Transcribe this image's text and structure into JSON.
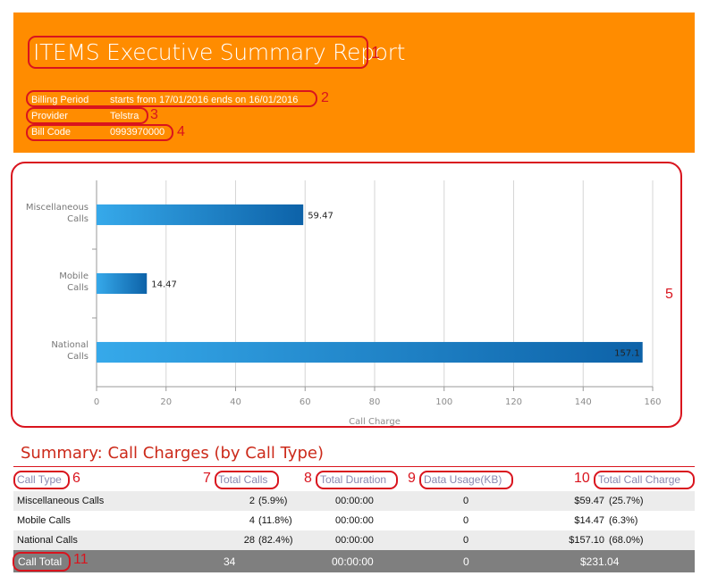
{
  "header": {
    "title": "ITEMS Executive Summary Report",
    "billing_period_label": "Billing Period",
    "billing_period_value": "starts from 17/01/2016 ends on 16/01/2016",
    "provider_label": "Provider",
    "provider_value": "Telstra",
    "bill_code_label": "Bill Code",
    "bill_code_value": "0993970000"
  },
  "callouts": [
    "1",
    "2",
    "3",
    "4",
    "5",
    "6",
    "7",
    "8",
    "9",
    "10",
    "11"
  ],
  "chart_data": {
    "type": "bar",
    "orientation": "horizontal",
    "categories": [
      "Miscellaneous Calls",
      "Mobile Calls",
      "National Calls"
    ],
    "category_lines": [
      [
        "Miscellaneous",
        "Calls"
      ],
      [
        "Mobile",
        "Calls"
      ],
      [
        "National",
        "Calls"
      ]
    ],
    "values": [
      59.47,
      14.47,
      157.1
    ],
    "data_labels": [
      "59.47",
      "14.47",
      "157.1"
    ],
    "xlabel": "Call Charge",
    "xlim": [
      0,
      160
    ],
    "xticks": [
      "0",
      "20",
      "40",
      "60",
      "80",
      "100",
      "120",
      "140",
      "160"
    ],
    "grid": true,
    "bar_color_light": "#36a9ea",
    "bar_color_dark": "#0d62a8"
  },
  "summary": {
    "title": "Summary: Call Charges (by Call Type)",
    "columns": [
      "Call Type",
      "Total Calls",
      "Total Duration",
      "Data Usage(KB)",
      "Total Call Charge"
    ],
    "rows": [
      {
        "type": "Miscellaneous Calls",
        "calls": "2",
        "calls_pct": "(5.9%)",
        "duration": "00:00:00",
        "data": "0",
        "charge": "$59.47",
        "charge_pct": "(25.7%)"
      },
      {
        "type": "Mobile Calls",
        "calls": "4",
        "calls_pct": "(11.8%)",
        "duration": "00:00:00",
        "data": "0",
        "charge": "$14.47",
        "charge_pct": "(6.3%)"
      },
      {
        "type": "National Calls",
        "calls": "28",
        "calls_pct": "(82.4%)",
        "duration": "00:00:00",
        "data": "0",
        "charge": "$157.10",
        "charge_pct": "(68.0%)"
      }
    ],
    "total": {
      "label": "Call Total",
      "calls": "34",
      "duration": "00:00:00",
      "data": "0",
      "charge": "$231.04"
    }
  }
}
